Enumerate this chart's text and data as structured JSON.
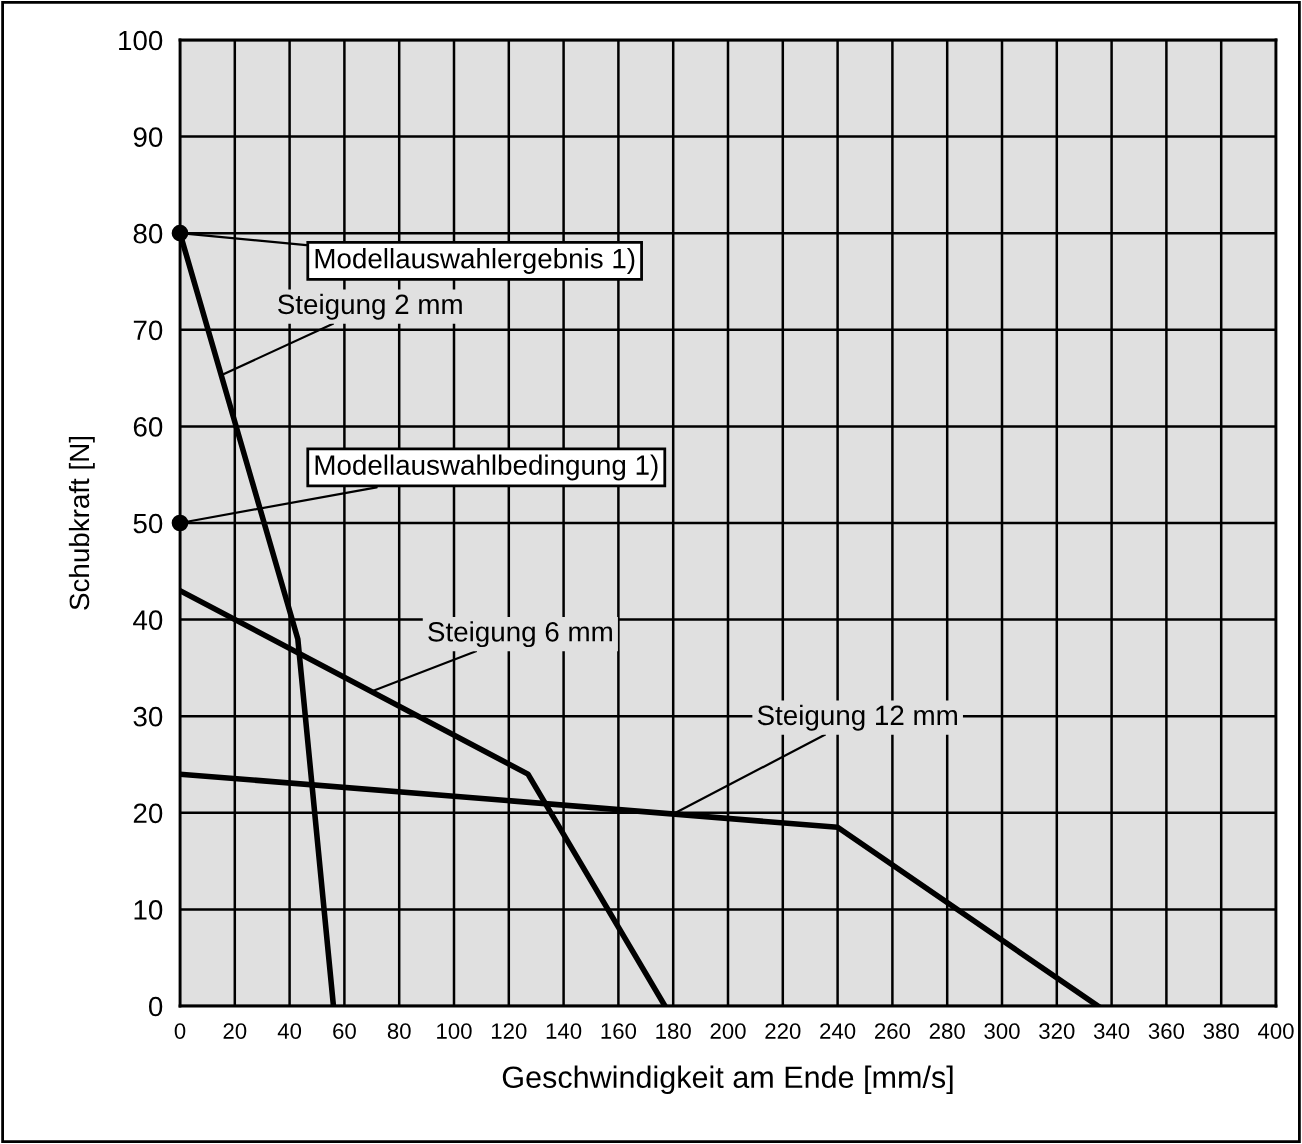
{
  "chart_data": {
    "type": "line",
    "xlabel": "Geschwindigkeit am Ende [mm/s]",
    "ylabel": "Schubkraft [N]",
    "xlim": [
      0,
      400
    ],
    "xticks": [
      0,
      20,
      40,
      60,
      80,
      100,
      120,
      140,
      160,
      180,
      200,
      220,
      240,
      260,
      280,
      300,
      320,
      340,
      360,
      380,
      400
    ],
    "ylim": [
      0,
      100
    ],
    "yticks": [
      0,
      10,
      20,
      30,
      40,
      50,
      60,
      70,
      80,
      90,
      100
    ],
    "grid": true,
    "marker": "none",
    "line_style": "solid",
    "series": [
      {
        "name": "Steigung 2 mm",
        "color": "#000000",
        "x": [
          0,
          43,
          56
        ],
        "values": [
          80,
          38,
          0
        ]
      },
      {
        "name": "Steigung 6 mm",
        "color": "#000000",
        "x": [
          0,
          127,
          177
        ],
        "values": [
          43,
          24,
          0
        ]
      },
      {
        "name": "Steigung 12 mm",
        "color": "#000000",
        "x": [
          0,
          240,
          335
        ],
        "values": [
          24,
          18.5,
          0
        ]
      },
      {
        "type": "scatter",
        "color": "#000000",
        "marker": "circle",
        "x": [
          0,
          0
        ],
        "values": [
          80,
          50
        ]
      }
    ],
    "annotations": [
      {
        "text": "Modellauswahlergebnis 1)",
        "x": 0,
        "y": 80
      },
      {
        "text": "Modellauswahlbedingung 1)",
        "x": 0,
        "y": 50
      }
    ]
  }
}
